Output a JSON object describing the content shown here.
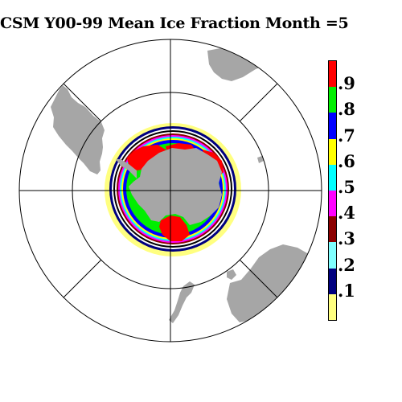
{
  "title": "CSM Y00-99 Mean Ice Fraction Month =5",
  "colorbar": [
    {
      "label": ".9",
      "color": "#ff0000"
    },
    {
      "label": ".8",
      "color": "#00ee00"
    },
    {
      "label": ".7",
      "color": "#0000ff"
    },
    {
      "label": ".6",
      "color": "#ffff00"
    },
    {
      "label": ".5",
      "color": "#00ffff"
    },
    {
      "label": ".4",
      "color": "#ff00ff"
    },
    {
      "label": ".3",
      "color": "#8b0000"
    },
    {
      "label": ".2",
      "color": "#7fffff"
    },
    {
      "label": ".1",
      "color": "#00007f"
    },
    {
      "label": "",
      "color": "#ffff80"
    }
  ],
  "colors": {
    "land": "#a6a6a6",
    "ocean": "#ffffff",
    "grid": "#000000"
  }
}
